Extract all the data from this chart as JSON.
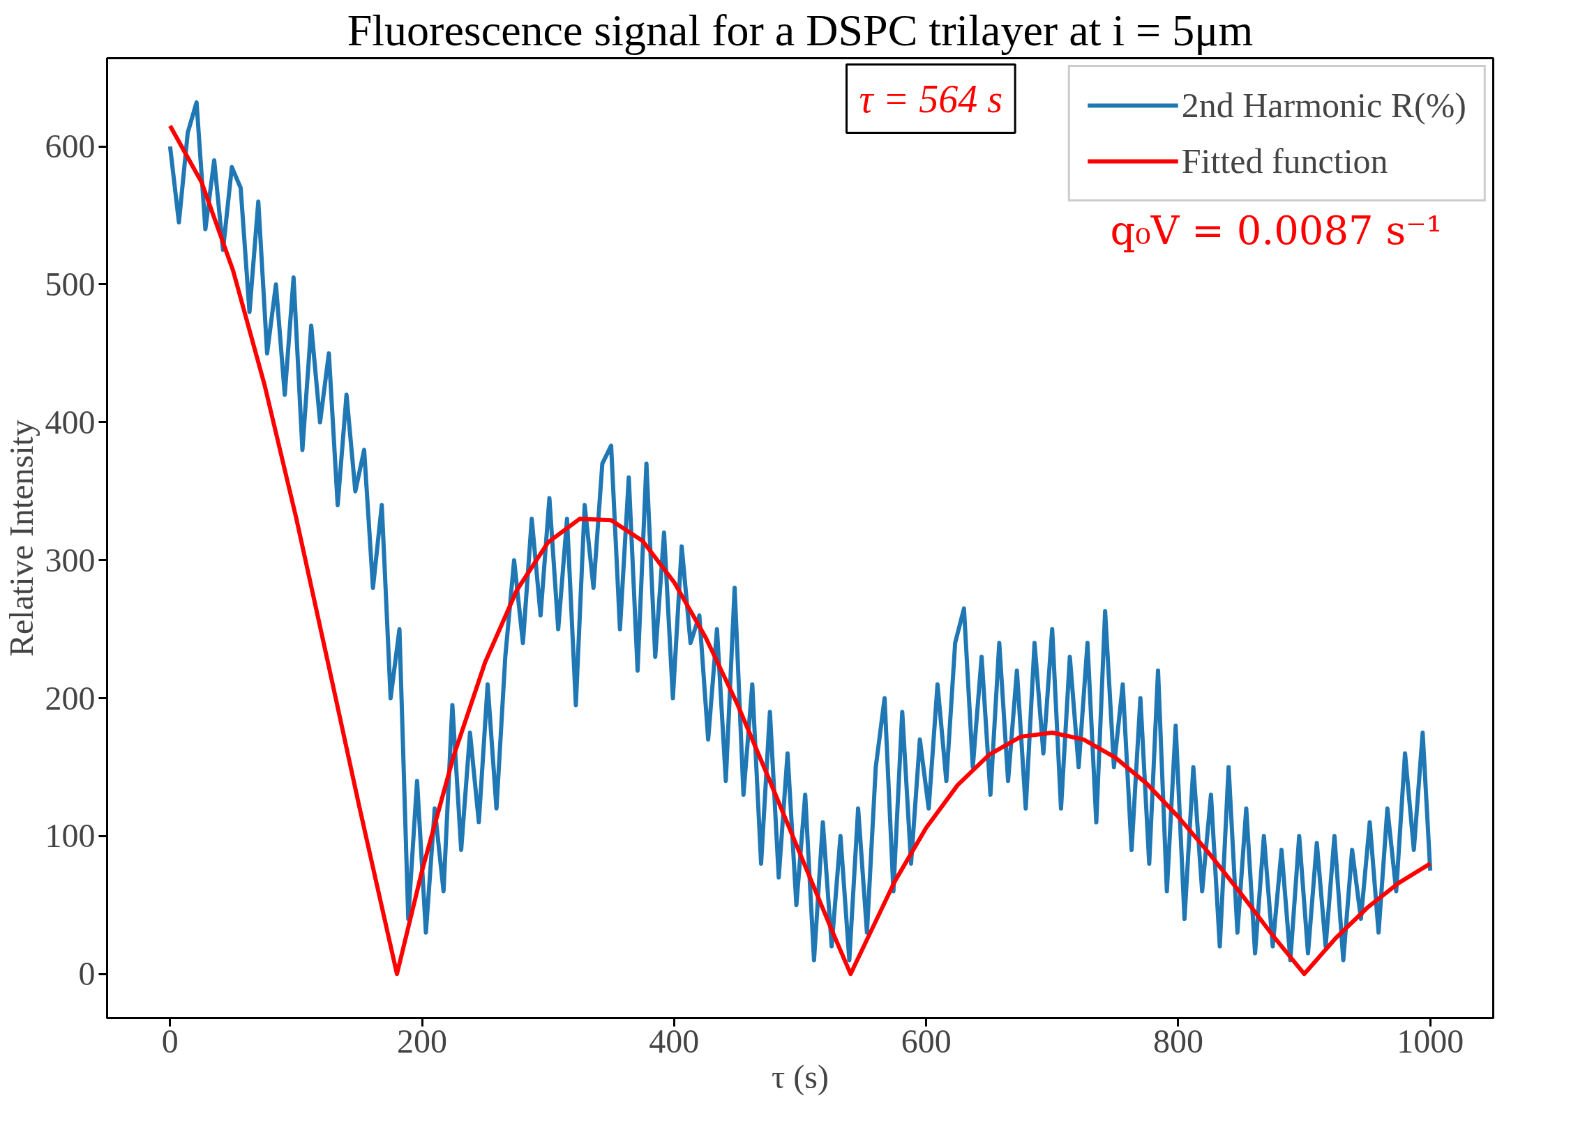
{
  "chart_data": {
    "type": "line",
    "title": "Fluorescence signal for a DSPC trilayer at i = 5μm",
    "xlabel": "τ (s)",
    "ylabel": "Relative Intensity",
    "xlim": [
      -50,
      1050
    ],
    "ylim": [
      -32,
      664
    ],
    "xticks": [
      0,
      200,
      400,
      600,
      800,
      1000
    ],
    "yticks": [
      0,
      100,
      200,
      300,
      400,
      500,
      600
    ],
    "grid": false,
    "legend": "top right",
    "marker": "none",
    "line_style": "solid",
    "annotations": [
      "τ = 564 s",
      "q₀V = 0.0087 s⁻¹"
    ],
    "series": [
      {
        "name": "2nd Harmonic R(%)",
        "color": "#1f77b4",
        "x": [
          0,
          7,
          14,
          21,
          28,
          35,
          42,
          49,
          56,
          63,
          70,
          77,
          84,
          91,
          98,
          105,
          112,
          119,
          126,
          133,
          140,
          147,
          154,
          161,
          168,
          175,
          182,
          189,
          196,
          203,
          210,
          217,
          224,
          231,
          238,
          245,
          252,
          259,
          266,
          273,
          280,
          287,
          294,
          301,
          308,
          315,
          322,
          329,
          336,
          343,
          350,
          357,
          364,
          371,
          378,
          385,
          392,
          399,
          406,
          413,
          420,
          427,
          434,
          441,
          448,
          455,
          462,
          469,
          476,
          483,
          490,
          497,
          504,
          511,
          518,
          525,
          532,
          539,
          546,
          553,
          560,
          567,
          574,
          581,
          588,
          595,
          602,
          609,
          616,
          623,
          630,
          637,
          644,
          651,
          658,
          665,
          672,
          679,
          686,
          693,
          700,
          707,
          714,
          721,
          728,
          735,
          742,
          749,
          756,
          763,
          770,
          777,
          784,
          791,
          798,
          805,
          812,
          819,
          826,
          833,
          840,
          847,
          854,
          861,
          868,
          875,
          882,
          889,
          896,
          903,
          910,
          917,
          924,
          931,
          938,
          945,
          952,
          959,
          966,
          973,
          980,
          987,
          994,
          1000
        ],
        "values": [
          600,
          545,
          610,
          632,
          540,
          590,
          525,
          585,
          570,
          480,
          560,
          450,
          500,
          420,
          505,
          380,
          470,
          400,
          450,
          340,
          420,
          350,
          380,
          280,
          340,
          200,
          250,
          40,
          140,
          30,
          120,
          60,
          195,
          90,
          175,
          110,
          210,
          120,
          230,
          300,
          240,
          330,
          260,
          345,
          250,
          330,
          195,
          340,
          280,
          370,
          383,
          250,
          360,
          220,
          370,
          230,
          320,
          200,
          310,
          240,
          260,
          170,
          250,
          140,
          280,
          130,
          210,
          80,
          190,
          70,
          160,
          50,
          130,
          10,
          110,
          20,
          100,
          10,
          120,
          30,
          150,
          200,
          60,
          190,
          80,
          170,
          120,
          210,
          140,
          240,
          265,
          150,
          230,
          130,
          240,
          140,
          220,
          120,
          240,
          160,
          250,
          120,
          230,
          150,
          240,
          110,
          263,
          150,
          210,
          90,
          200,
          80,
          220,
          60,
          180,
          40,
          150,
          60,
          130,
          20,
          150,
          30,
          120,
          15,
          100,
          20,
          90,
          10,
          100,
          15,
          95,
          20,
          100,
          10,
          90,
          40,
          110,
          30,
          120,
          60,
          160,
          90,
          175,
          75
        ]
      },
      {
        "name": "Fitted function",
        "color": "#ff0000",
        "x": [
          0,
          25,
          50,
          75,
          100,
          125,
          150,
          180,
          200,
          225,
          250,
          275,
          300,
          325,
          350,
          375,
          400,
          425,
          450,
          475,
          500,
          525,
          540,
          575,
          600,
          625,
          650,
          675,
          700,
          725,
          750,
          775,
          800,
          825,
          850,
          875,
          900,
          925,
          950,
          975,
          1000
        ],
        "values": [
          615,
          574,
          510,
          427,
          331,
          227,
          122,
          0,
          75,
          158,
          226,
          278,
          313,
          330,
          329,
          314,
          284,
          244,
          196,
          142,
          87,
          32,
          0,
          67,
          106,
          137,
          159,
          172,
          175,
          170,
          157,
          138,
          114,
          87,
          58,
          28,
          0,
          26,
          48,
          66,
          80
        ]
      }
    ]
  }
}
